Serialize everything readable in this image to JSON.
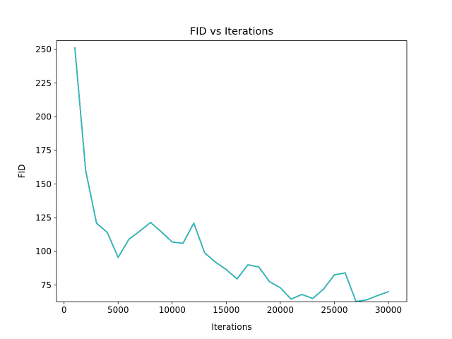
{
  "chart_data": {
    "type": "line",
    "title": "FID vs Iterations",
    "xlabel": "Iterations",
    "ylabel": "FID",
    "xlim": [
      -700,
      31700
    ],
    "ylim": [
      62.6,
      256.5
    ],
    "xticks": [
      0,
      5000,
      10000,
      15000,
      20000,
      25000,
      30000
    ],
    "yticks": [
      75,
      100,
      125,
      150,
      175,
      200,
      225,
      250
    ],
    "grid": false,
    "legend": "none",
    "series_colors": [
      "#1f77b4",
      "#ff7f0e",
      "#2ca02c",
      "#d62728",
      "#9467bd",
      "#8c564b",
      "#e377c2",
      "#7f7f7f",
      "#bcbd22",
      "#17becf"
    ],
    "x": [
      1000,
      2000,
      3000,
      4000,
      5000,
      6000,
      7000,
      8000,
      9000,
      10000,
      11000,
      12000,
      13000,
      14000,
      15000,
      16000,
      17000,
      18000,
      19000,
      20000,
      21000,
      22000,
      23000,
      24000,
      25000,
      26000,
      27000,
      28000,
      29000,
      30000
    ],
    "series": [
      {
        "values": [
          251,
          160,
          121,
          114,
          95.5,
          109,
          115,
          121.5,
          114.5,
          107,
          106,
          121,
          99,
          92,
          86.5,
          79.5,
          90,
          88.5,
          77.5,
          73,
          64.5,
          68,
          65,
          72,
          82.5,
          84,
          62.8,
          64,
          67.2,
          70
        ]
      }
    ]
  }
}
